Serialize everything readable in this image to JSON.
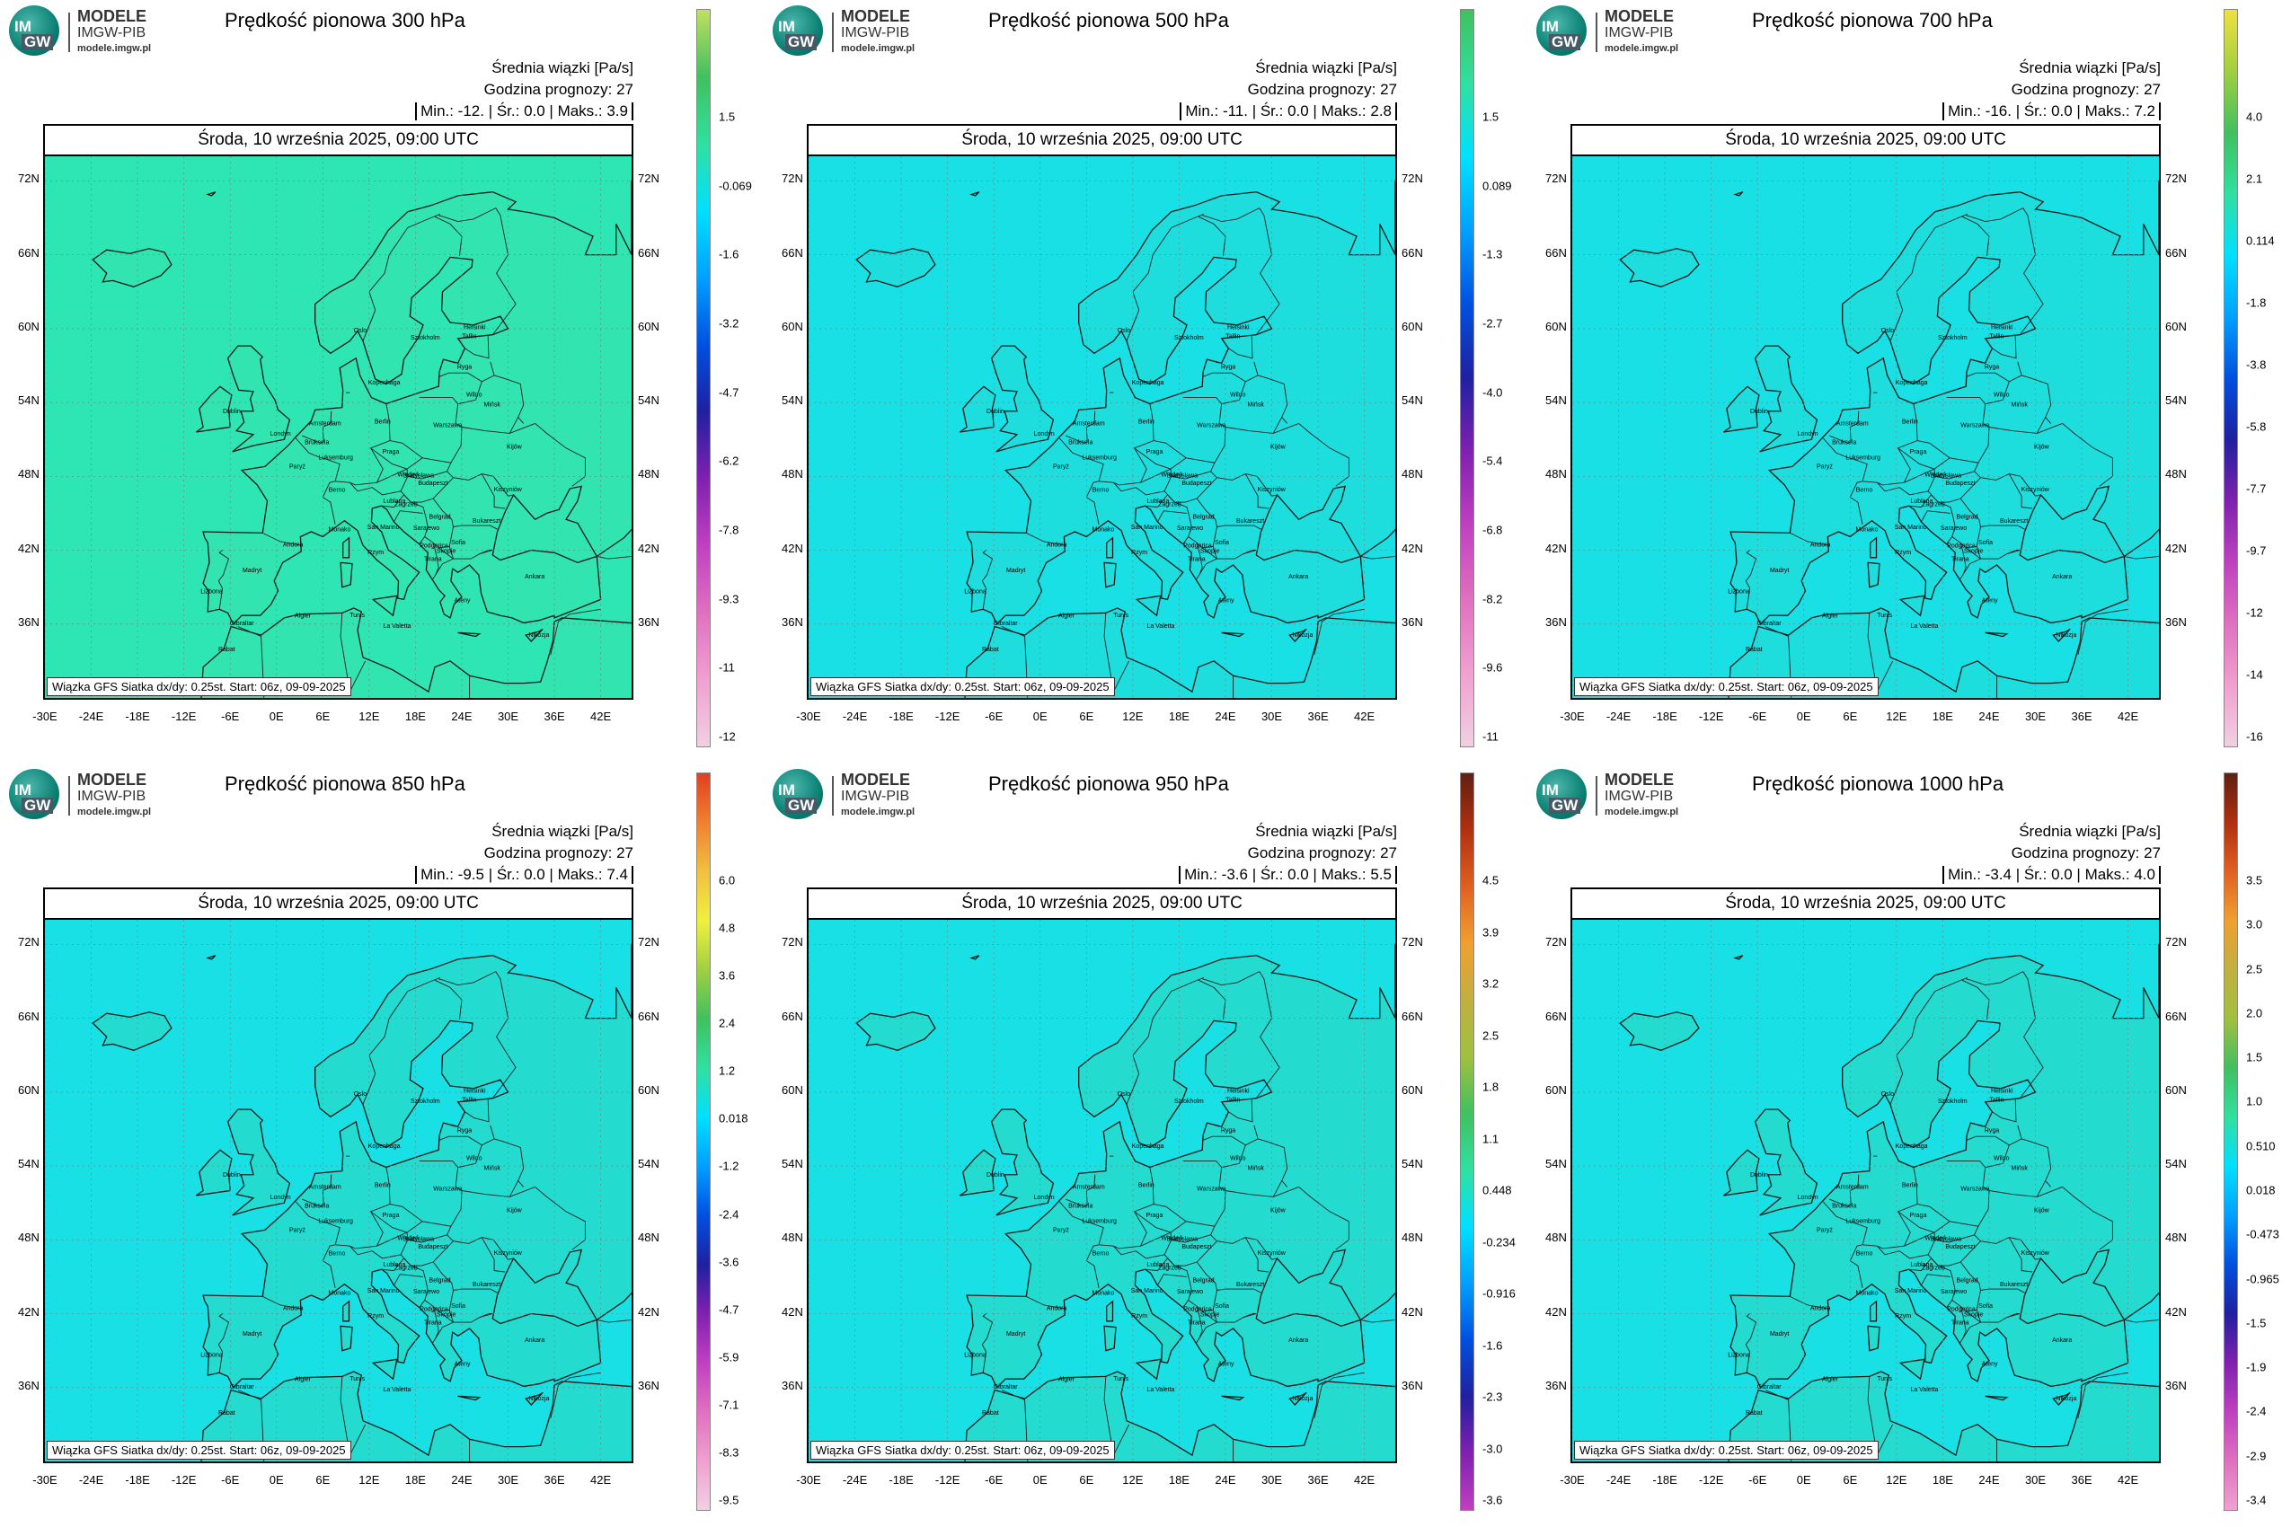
{
  "org": {
    "line1": "MODELE",
    "line2": "IMGW-PIB",
    "url": "modele.imgw.pl",
    "logo_text_top": "IM",
    "logo_text_bottom": "GW"
  },
  "common": {
    "meta_line1": "Średnia wiązki [Pa/s]",
    "meta_line2": "Godzina prognozy: 27",
    "date": "Środa, 10 września 2025, 09:00 UTC",
    "footer": "Wiązka GFS Siatka dx/dy: 0.25st. Start: 06z, 09-09-2025",
    "lat_labels": [
      "72N",
      "66N",
      "60N",
      "54N",
      "48N",
      "42N",
      "36N"
    ],
    "lon_labels": [
      "-30E",
      "-24E",
      "-18E",
      "-12E",
      "-6E",
      "0E",
      "6E",
      "12E",
      "18E",
      "24E",
      "30E",
      "36E",
      "42E"
    ],
    "stat_labels": {
      "min": "Min.:",
      "avg": "Śr.:",
      "max": "Maks.:"
    },
    "cities": [
      "Oslo",
      "Sztokholm",
      "Helsinki",
      "Tallin",
      "Ryga",
      "Wilno",
      "Mińsk",
      "Kopenhaga",
      "Amsterdam",
      "Berlin",
      "Warszawa",
      "Londyn",
      "Bruksela",
      "Luksemburg",
      "Paryż",
      "Praga",
      "Kijów",
      "Wiedeń",
      "Bratysława",
      "Budapeszt",
      "Kiszyniów",
      "Berno",
      "Lublana",
      "Zagrzeb",
      "Belgrad",
      "Bukareszt",
      "Sarajewo",
      "Andora",
      "Monako",
      "San Marino",
      "Podgorica",
      "Sofia",
      "Skopje",
      "Rzym",
      "Tirana",
      "Madryt",
      "Ateny",
      "Ankara",
      "Lizbona",
      "Algier",
      "Tunis",
      "La Valetta",
      "Gibraltar",
      "Rabat",
      "Nikozja",
      "Dublin"
    ]
  },
  "panels": [
    {
      "title": "Prędkość pionowa 300 hPa",
      "min": "-12.",
      "avg": "0.0",
      "max": "3.9",
      "bg": "#2ee6b4",
      "scale": [
        "1.5",
        "-0.069",
        "-1.6",
        "-3.2",
        "-4.7",
        "-6.2",
        "-7.8",
        "-9.3",
        "-11",
        "-12"
      ],
      "scale_colors": [
        "#c0e060",
        "#40c060",
        "#30e0a0",
        "#00e0ff",
        "#00a0ff",
        "#0050e0",
        "#2020a0",
        "#8020b0",
        "#c040c0",
        "#e070c0",
        "#f0a0d0",
        "#f0d0e0"
      ]
    },
    {
      "title": "Prędkość pionowa 500 hPa",
      "min": "-11.",
      "avg": "0.0",
      "max": "2.8",
      "bg": "#18e0e4",
      "scale": [
        "1.5",
        "0.089",
        "-1.3",
        "-2.7",
        "-4.0",
        "-5.4",
        "-6.8",
        "-8.2",
        "-9.6",
        "-11"
      ],
      "scale_colors": [
        "#40c060",
        "#30e0a0",
        "#00e0ff",
        "#00a0ff",
        "#0050e0",
        "#2020a0",
        "#8020b0",
        "#c040c0",
        "#e070c0",
        "#f0a0d0",
        "#f0d0e0"
      ]
    },
    {
      "title": "Prędkość pionowa 700 hPa",
      "min": "-16.",
      "avg": "0.0",
      "max": "7.2",
      "bg": "#18e0e4",
      "scale": [
        "4.0",
        "2.1",
        "0.114",
        "-1.8",
        "-3.8",
        "-5.8",
        "-7.7",
        "-9.7",
        "-12",
        "-14",
        "-16"
      ],
      "scale_colors": [
        "#f0e040",
        "#a0d040",
        "#40c060",
        "#30e0a0",
        "#00e0ff",
        "#00a0ff",
        "#0050e0",
        "#2020a0",
        "#8020b0",
        "#c040c0",
        "#e070c0",
        "#f0a0d0",
        "#f0d0e0"
      ]
    },
    {
      "title": "Prędkość pionowa 850 hPa",
      "min": "-9.5",
      "avg": "0.0",
      "max": "7.4",
      "bg": "#18e0e4",
      "scale": [
        "6.0",
        "4.8",
        "3.6",
        "2.4",
        "1.2",
        "0.018",
        "-1.2",
        "-2.4",
        "-3.6",
        "-4.7",
        "-5.9",
        "-7.1",
        "-8.3",
        "-9.5"
      ],
      "scale_colors": [
        "#e04020",
        "#f08030",
        "#f0c040",
        "#f0f040",
        "#a0d040",
        "#40c060",
        "#30e0a0",
        "#00e0ff",
        "#00a0ff",
        "#0050e0",
        "#2020a0",
        "#8020b0",
        "#c040c0",
        "#e070c0",
        "#f0a0d0",
        "#f0d0e0"
      ]
    },
    {
      "title": "Prędkość pionowa 950 hPa",
      "min": "-3.6",
      "avg": "0.0",
      "max": "5.5",
      "bg": "#18e0e4",
      "scale": [
        "4.5",
        "3.9",
        "3.2",
        "2.5",
        "1.8",
        "1.1",
        "0.448",
        "-0.234",
        "-0.916",
        "-1.6",
        "-2.3",
        "-3.0",
        "-3.6"
      ],
      "scale_colors": [
        "#602010",
        "#b03010",
        "#e06020",
        "#f0a030",
        "#c0b040",
        "#a0c040",
        "#40c060",
        "#30e0a0",
        "#00e0ff",
        "#00a0ff",
        "#0050e0",
        "#2020a0",
        "#8020b0",
        "#c040c0"
      ]
    },
    {
      "title": "Prędkość pionowa 1000 hPa",
      "min": "-3.4",
      "avg": "0.0",
      "max": "4.0",
      "bg": "#18e0e4",
      "scale": [
        "3.5",
        "3.0",
        "2.5",
        "2.0",
        "1.5",
        "1.0",
        "0.510",
        "0.018",
        "-0.473",
        "-0.965",
        "-1.5",
        "-1.9",
        "-2.4",
        "-2.9",
        "-3.4"
      ],
      "scale_colors": [
        "#602010",
        "#b03010",
        "#e06020",
        "#f0a030",
        "#c0b040",
        "#a0c040",
        "#40c060",
        "#30e0a0",
        "#00e0ff",
        "#00a0ff",
        "#0050e0",
        "#2020a0",
        "#8020b0",
        "#c040c0",
        "#e070c0",
        "#f0a0d0"
      ]
    }
  ]
}
